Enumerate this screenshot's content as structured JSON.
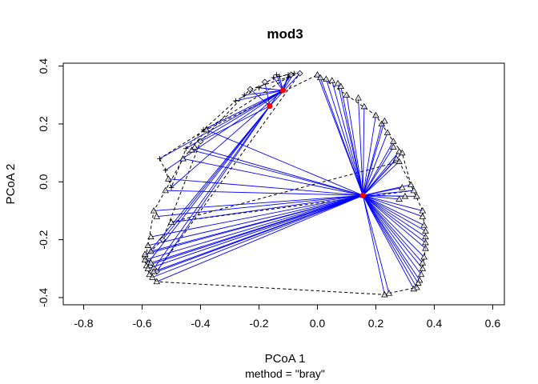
{
  "chart_data": {
    "type": "scatter",
    "title": "mod3",
    "xlabel": "PCoA 1",
    "sublabel": "method = \"bray\"",
    "ylabel": "PCoA 2",
    "xlim": [
      -0.87,
      0.64
    ],
    "ylim": [
      -0.425,
      0.41
    ],
    "xticks": [
      -0.8,
      -0.6,
      -0.4,
      -0.2,
      0.0,
      0.2,
      0.4,
      0.6
    ],
    "xtick_labels": [
      "-0.8",
      "-0.6",
      "-0.4",
      "-0.2",
      "0.0",
      "0.2",
      "0.4",
      "0.6"
    ],
    "yticks": [
      -0.4,
      -0.2,
      0.0,
      0.2,
      0.4
    ],
    "ytick_labels": [
      "-0.4",
      "-0.2",
      "0.0",
      "0.2",
      "0.4"
    ],
    "colors": {
      "spider": "#0000ff",
      "centroid": "#ff0000",
      "hull": "#000000",
      "points": "#000000"
    },
    "centroids": [
      {
        "x": -0.163,
        "y": 0.262
      },
      {
        "x": -0.118,
        "y": 0.316
      },
      {
        "x": 0.156,
        "y": -0.047
      }
    ],
    "groups": [
      {
        "marker": "cross",
        "centroid": 1,
        "points": [
          {
            "x": -0.54,
            "y": 0.08
          },
          {
            "x": -0.52,
            "y": 0.04
          },
          {
            "x": -0.5,
            "y": -0.02
          },
          {
            "x": -0.45,
            "y": 0.115
          },
          {
            "x": -0.39,
            "y": 0.18
          },
          {
            "x": -0.28,
            "y": 0.28
          },
          {
            "x": -0.25,
            "y": 0.3
          },
          {
            "x": -0.2,
            "y": 0.325
          },
          {
            "x": -0.15,
            "y": 0.36
          },
          {
            "x": -0.14,
            "y": 0.37
          },
          {
            "x": -0.13,
            "y": 0.365
          },
          {
            "x": -0.1,
            "y": 0.37
          },
          {
            "x": -0.08,
            "y": 0.375
          },
          {
            "x": -0.1,
            "y": 0.36
          }
        ]
      },
      {
        "marker": "diamond",
        "centroid": 0,
        "points": [
          {
            "x": -0.59,
            "y": -0.26
          },
          {
            "x": -0.58,
            "y": -0.28
          },
          {
            "x": -0.56,
            "y": -0.3
          },
          {
            "x": -0.55,
            "y": -0.31
          },
          {
            "x": -0.53,
            "y": -0.2
          },
          {
            "x": -0.4,
            "y": 0.14
          },
          {
            "x": -0.23,
            "y": 0.32
          },
          {
            "x": -0.18,
            "y": 0.345
          },
          {
            "x": -0.09,
            "y": 0.37
          },
          {
            "x": -0.06,
            "y": 0.375
          }
        ]
      },
      {
        "marker": "triangle",
        "centroid": 2,
        "points": [
          {
            "x": -0.59,
            "y": -0.25
          },
          {
            "x": -0.59,
            "y": -0.27
          },
          {
            "x": -0.585,
            "y": -0.29
          },
          {
            "x": -0.58,
            "y": -0.3
          },
          {
            "x": -0.575,
            "y": -0.32
          },
          {
            "x": -0.57,
            "y": -0.28
          },
          {
            "x": -0.565,
            "y": -0.33
          },
          {
            "x": -0.56,
            "y": -0.31
          },
          {
            "x": -0.58,
            "y": -0.22
          },
          {
            "x": -0.57,
            "y": -0.19
          },
          {
            "x": -0.57,
            "y": -0.24
          },
          {
            "x": -0.55,
            "y": -0.345
          },
          {
            "x": -0.56,
            "y": -0.1
          },
          {
            "x": -0.55,
            "y": -0.12
          },
          {
            "x": -0.52,
            "y": -0.03
          },
          {
            "x": -0.51,
            "y": 0.01
          },
          {
            "x": -0.5,
            "y": -0.14
          },
          {
            "x": -0.46,
            "y": 0.08
          },
          {
            "x": -0.43,
            "y": 0.11
          },
          {
            "x": -0.42,
            "y": 0.12
          },
          {
            "x": -0.38,
            "y": 0.18
          },
          {
            "x": 0.0,
            "y": 0.37
          },
          {
            "x": 0.01,
            "y": 0.36
          },
          {
            "x": 0.03,
            "y": 0.355
          },
          {
            "x": 0.05,
            "y": 0.35
          },
          {
            "x": 0.07,
            "y": 0.34
          },
          {
            "x": 0.08,
            "y": 0.33
          },
          {
            "x": 0.1,
            "y": 0.3
          },
          {
            "x": 0.14,
            "y": 0.29
          },
          {
            "x": 0.16,
            "y": 0.26
          },
          {
            "x": 0.2,
            "y": 0.23
          },
          {
            "x": 0.22,
            "y": 0.2
          },
          {
            "x": 0.23,
            "y": 0.21
          },
          {
            "x": 0.24,
            "y": 0.17
          },
          {
            "x": 0.26,
            "y": 0.12
          },
          {
            "x": 0.26,
            "y": 0.14
          },
          {
            "x": 0.27,
            "y": 0.08
          },
          {
            "x": 0.28,
            "y": 0.105
          },
          {
            "x": 0.28,
            "y": 0.07
          },
          {
            "x": 0.29,
            "y": 0.1
          },
          {
            "x": 0.32,
            "y": -0.01
          },
          {
            "x": 0.33,
            "y": -0.03
          },
          {
            "x": 0.34,
            "y": -0.05
          },
          {
            "x": 0.36,
            "y": -0.1
          },
          {
            "x": 0.36,
            "y": -0.12
          },
          {
            "x": 0.365,
            "y": -0.15
          },
          {
            "x": 0.37,
            "y": -0.17
          },
          {
            "x": 0.37,
            "y": -0.19
          },
          {
            "x": 0.37,
            "y": -0.21
          },
          {
            "x": 0.37,
            "y": -0.23
          },
          {
            "x": 0.365,
            "y": -0.26
          },
          {
            "x": 0.36,
            "y": -0.28
          },
          {
            "x": 0.36,
            "y": -0.3
          },
          {
            "x": 0.355,
            "y": -0.32
          },
          {
            "x": 0.35,
            "y": -0.34
          },
          {
            "x": 0.345,
            "y": -0.35
          },
          {
            "x": 0.34,
            "y": -0.365
          },
          {
            "x": 0.33,
            "y": -0.37
          },
          {
            "x": 0.23,
            "y": -0.39
          },
          {
            "x": 0.245,
            "y": -0.385
          },
          {
            "x": 0.29,
            "y": -0.02
          },
          {
            "x": 0.3,
            "y": -0.05
          },
          {
            "x": 0.28,
            "y": -0.06
          }
        ]
      }
    ],
    "hulls": [
      [
        [
          -0.54,
          0.08
        ],
        [
          -0.52,
          0.04
        ],
        [
          -0.5,
          -0.02
        ],
        [
          -0.45,
          0.115
        ],
        [
          -0.39,
          0.18
        ],
        [
          -0.28,
          0.28
        ],
        [
          -0.2,
          0.325
        ],
        [
          -0.15,
          0.36
        ],
        [
          -0.08,
          0.375
        ],
        [
          -0.54,
          0.08
        ]
      ],
      [
        [
          -0.59,
          -0.26
        ],
        [
          -0.53,
          -0.2
        ],
        [
          -0.4,
          0.14
        ],
        [
          -0.23,
          0.32
        ],
        [
          -0.06,
          0.375
        ],
        [
          -0.55,
          -0.31
        ],
        [
          -0.59,
          -0.26
        ]
      ],
      [
        [
          -0.58,
          -0.22
        ],
        [
          -0.56,
          -0.1
        ],
        [
          -0.52,
          -0.03
        ],
        [
          -0.46,
          0.08
        ],
        [
          -0.38,
          0.18
        ],
        [
          0.0,
          0.37
        ],
        [
          0.1,
          0.3
        ],
        [
          0.2,
          0.23
        ],
        [
          0.26,
          0.14
        ],
        [
          0.29,
          0.1
        ],
        [
          0.32,
          -0.01
        ],
        [
          0.36,
          -0.1
        ],
        [
          0.37,
          -0.19
        ],
        [
          0.37,
          -0.23
        ],
        [
          0.36,
          -0.3
        ],
        [
          0.34,
          -0.365
        ],
        [
          0.245,
          -0.385
        ],
        [
          0.23,
          -0.39
        ],
        [
          -0.55,
          -0.345
        ],
        [
          -0.575,
          -0.32
        ],
        [
          -0.59,
          -0.27
        ],
        [
          -0.58,
          -0.22
        ]
      ],
      [
        [
          -0.5,
          -0.14
        ],
        [
          0.33,
          -0.03
        ],
        [
          0.28,
          0.07
        ],
        [
          -0.5,
          -0.14
        ]
      ]
    ]
  }
}
